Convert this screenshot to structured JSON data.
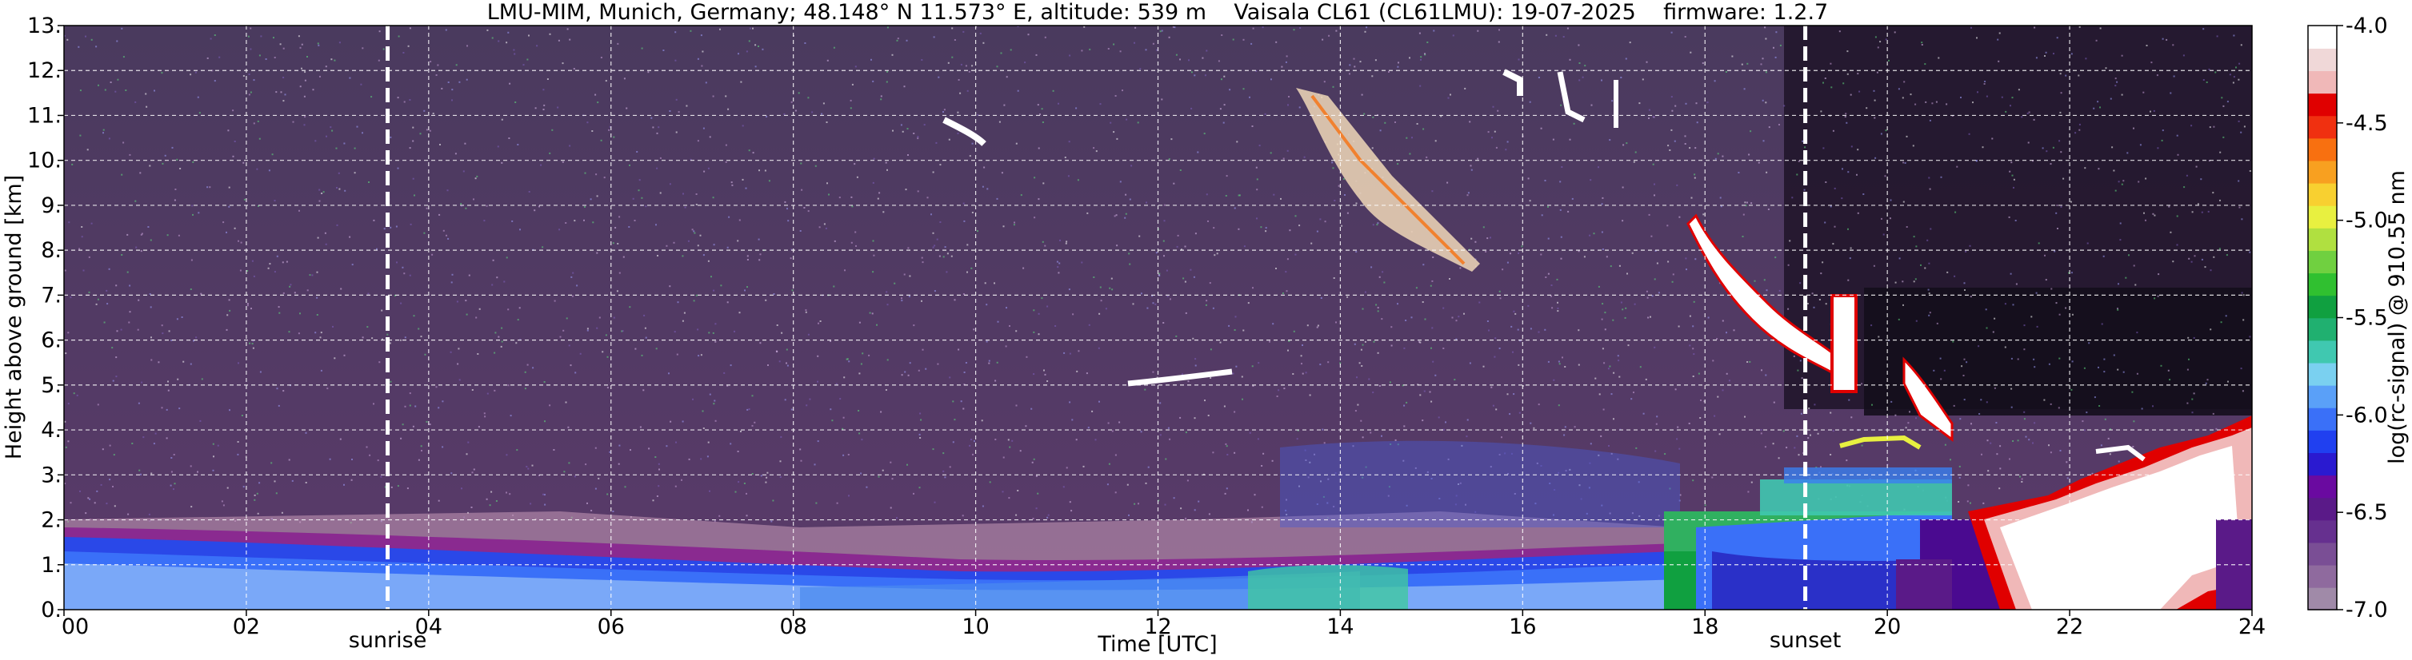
{
  "chart_data": {
    "type": "heatmap",
    "title": "LMU-MIM, Munich, Germany; 48.148° N 11.573° E, altitude: 539 m    Vaisala CL61 (CL61LMU): 19-07-2025    firmware: 1.2.7",
    "xlabel": "Time [UTC]",
    "ylabel": "Height above ground [km]",
    "xlim": [
      0,
      24
    ],
    "ylim": [
      0,
      13
    ],
    "x_ticks": [
      "00",
      "02",
      "04",
      "06",
      "08",
      "10",
      "12",
      "14",
      "16",
      "18",
      "20",
      "22",
      "24"
    ],
    "x_tick_values": [
      0,
      2,
      4,
      6,
      8,
      10,
      12,
      14,
      16,
      18,
      20,
      22,
      24
    ],
    "y_ticks": [
      "0.",
      "1.",
      "2.",
      "3.",
      "4.",
      "5.",
      "6.",
      "7.",
      "8.",
      "9.",
      "10.",
      "11.",
      "12.",
      "13."
    ],
    "y_tick_values": [
      0,
      1,
      2,
      3,
      4,
      5,
      6,
      7,
      8,
      9,
      10,
      11,
      12,
      13
    ],
    "grid": true,
    "colorbar": {
      "label": "log(rc-signal) @ 910.55 nm",
      "range": [
        -7.0,
        -4.0
      ],
      "ticks": [
        "-4.0",
        "-4.5",
        "-5.0",
        "-5.5",
        "-6.0",
        "-6.5",
        "-7.0"
      ],
      "tick_values": [
        -4.0,
        -4.5,
        -5.0,
        -5.5,
        -6.0,
        -6.5,
        -7.0
      ],
      "colors": [
        "#a08aa8",
        "#8f6a9e",
        "#7a4e95",
        "#66308f",
        "#5a1a88",
        "#6a0aa0",
        "#2a1ad0",
        "#2040f0",
        "#3a70f8",
        "#5aa0f8",
        "#7ad0f0",
        "#40c8b0",
        "#20b070",
        "#10a040",
        "#30c030",
        "#70d040",
        "#b0e040",
        "#e8f040",
        "#f8d030",
        "#f8a020",
        "#f87010",
        "#f03010",
        "#e00000",
        "#f0b8b8",
        "#f0d8d8",
        "#ffffff"
      ]
    },
    "markers": [
      {
        "label": "sunrise",
        "x": 3.55
      },
      {
        "label": "sunset",
        "x": 19.1
      }
    ]
  }
}
